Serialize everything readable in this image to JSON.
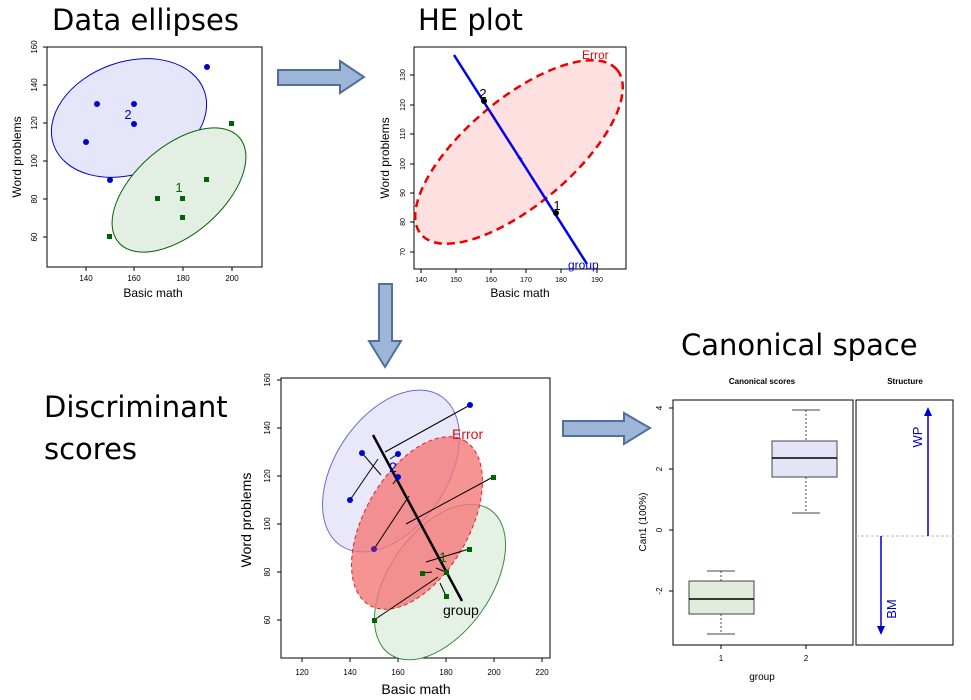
{
  "titles": {
    "data_ellipses": "Data ellipses",
    "he_plot": "HE plot",
    "discriminant_1": "Discriminant",
    "discriminant_2": "scores",
    "canonical_space": "Canonical space"
  },
  "colors": {
    "group1": "#006400",
    "group2": "#0000cc",
    "error": "#ee0000",
    "arrow_fill": "#9db5d6",
    "arrow_stroke": "#4f6f9c"
  },
  "plot_data_ellipses": {
    "xlabel": "Basic math",
    "ylabel": "Word problems",
    "xticks": [
      "140",
      "160",
      "180",
      "200"
    ],
    "yticks": [
      "60",
      "80",
      "100",
      "120",
      "140",
      "160"
    ],
    "group1_label": "1",
    "group2_label": "2"
  },
  "plot_he": {
    "xlabel": "Basic math",
    "ylabel": "Word problems",
    "xticks": [
      "140",
      "150",
      "160",
      "170",
      "180",
      "190"
    ],
    "yticks": [
      "70",
      "80",
      "90",
      "100",
      "110",
      "120",
      "130"
    ],
    "error_label": "Error",
    "group_label": "group",
    "point1_label": "1",
    "point2_label": "2"
  },
  "plot_discriminant": {
    "xlabel": "Basic math",
    "ylabel": "Word problems",
    "xticks": [
      "120",
      "140",
      "160",
      "180",
      "200",
      "220"
    ],
    "yticks": [
      "60",
      "80",
      "100",
      "120",
      "140",
      "160"
    ],
    "error_label": "Error",
    "group_label": "group",
    "group1_label": "1",
    "group2_label": "2"
  },
  "plot_canonical": {
    "scores_title": "Canonical scores",
    "structure_title": "Structure",
    "ylabel": "Can1 (100%)",
    "xlabel": "group",
    "xticks": [
      "1",
      "2"
    ],
    "yticks": [
      "-2",
      "0",
      "2",
      "4"
    ],
    "wp_label": "WP",
    "bm_label": "BM"
  }
}
